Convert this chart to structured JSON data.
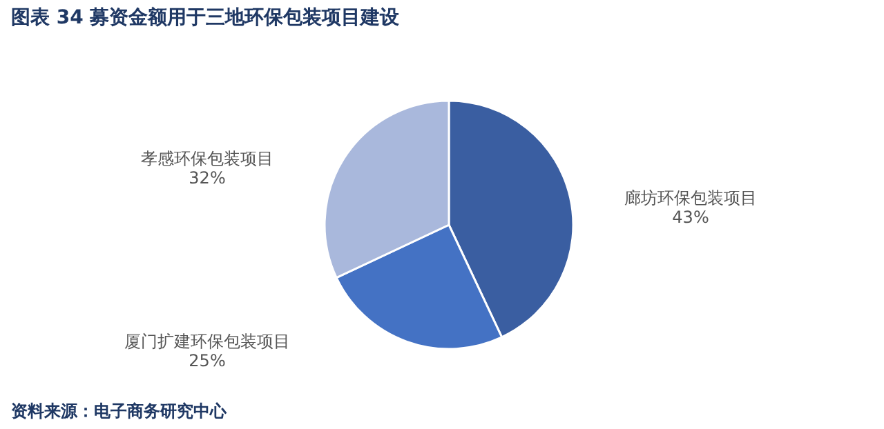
{
  "chart_data": {
    "type": "pie",
    "title": "图表 34  募资金额用于三地环保包装项目建设",
    "categories": [
      "廊坊环保包装项目",
      "厦门扩建环保包装项目",
      "孝感环保包装项目"
    ],
    "values": [
      43,
      25,
      32
    ],
    "value_labels": [
      "43%",
      "25%",
      "32%"
    ],
    "colors": [
      "#3a5ea1",
      "#4472c4",
      "#a9b8dc"
    ],
    "annotations": [
      "资料来源：电子商务研究中心"
    ]
  }
}
